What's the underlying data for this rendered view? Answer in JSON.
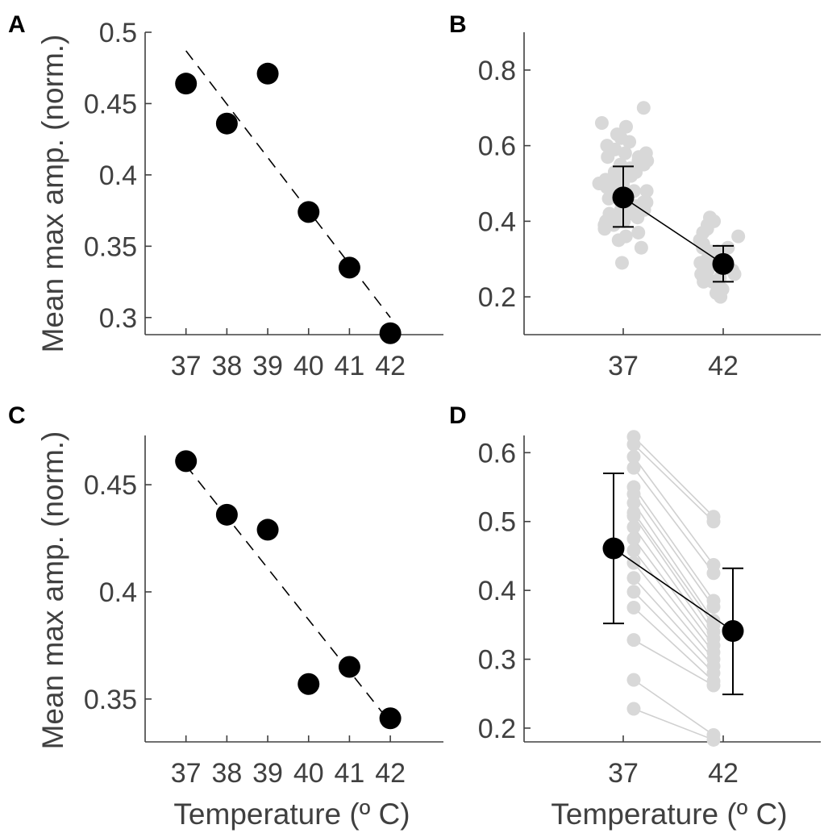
{
  "colors": {
    "point": "#000000",
    "scatter": "#d8d8d8",
    "pair_line": "#d0d0d0",
    "axis": "#404040",
    "text": "#404040"
  },
  "axes_text": {
    "ylabel_top": "Mean max amp. (norm.)",
    "ylabel_bottom": "Mean max amp. (norm.)",
    "xlabel_left": "Temperature (º C)",
    "xlabel_right": "Temperature (º C)"
  },
  "chart_data": [
    {
      "panel": "A",
      "type": "scatter",
      "xlabel": "",
      "ylabel": "Mean max amp. (norm.)",
      "x": [
        37,
        38,
        39,
        40,
        41,
        42
      ],
      "y": [
        0.464,
        0.436,
        0.471,
        0.374,
        0.335,
        0.289
      ],
      "fit_line": {
        "x": [
          37,
          42
        ],
        "y": [
          0.487,
          0.3
        ]
      },
      "xlim": [
        36,
        43.3
      ],
      "ylim": [
        0.288,
        0.5
      ],
      "xticks": [
        37,
        38,
        39,
        40,
        41,
        42
      ],
      "yticks": [
        0.3,
        0.35,
        0.4,
        0.45,
        0.5
      ],
      "ytick_labels": [
        "0.3",
        "0.35",
        "0.4",
        "0.45",
        "0.5"
      ]
    },
    {
      "panel": "B",
      "type": "scatter",
      "xlabel": "",
      "ylabel": "",
      "categories": [
        "37",
        "42"
      ],
      "means": [
        0.463,
        0.287
      ],
      "errors": [
        [
          0.385,
          0.545
        ],
        [
          0.24,
          0.335
        ]
      ],
      "raw_points": [
        [
          0.7,
          0.66,
          0.65,
          0.63,
          0.62,
          0.61,
          0.6,
          0.59,
          0.58,
          0.58,
          0.57,
          0.57,
          0.56,
          0.56,
          0.55,
          0.55,
          0.54,
          0.54,
          0.53,
          0.53,
          0.52,
          0.52,
          0.51,
          0.51,
          0.5,
          0.5,
          0.5,
          0.49,
          0.49,
          0.48,
          0.48,
          0.47,
          0.47,
          0.46,
          0.46,
          0.45,
          0.45,
          0.45,
          0.44,
          0.44,
          0.43,
          0.43,
          0.42,
          0.42,
          0.41,
          0.41,
          0.4,
          0.4,
          0.39,
          0.39,
          0.38,
          0.37,
          0.36,
          0.35,
          0.33,
          0.29
        ],
        [
          0.41,
          0.4,
          0.39,
          0.38,
          0.37,
          0.36,
          0.35,
          0.34,
          0.33,
          0.33,
          0.32,
          0.32,
          0.31,
          0.31,
          0.3,
          0.3,
          0.29,
          0.29,
          0.28,
          0.28,
          0.27,
          0.27,
          0.26,
          0.26,
          0.25,
          0.25,
          0.24,
          0.24,
          0.23,
          0.22,
          0.21,
          0.2
        ]
      ],
      "ylim": [
        0.1,
        0.9
      ],
      "yticks": [
        0.2,
        0.4,
        0.6,
        0.8
      ],
      "ytick_labels": [
        "0.2",
        "0.4",
        "0.6",
        "0.8"
      ]
    },
    {
      "panel": "C",
      "type": "scatter",
      "xlabel": "Temperature (º C)",
      "ylabel": "Mean max amp. (norm.)",
      "x": [
        37,
        38,
        39,
        40,
        41,
        42
      ],
      "y": [
        0.461,
        0.436,
        0.429,
        0.357,
        0.365,
        0.341
      ],
      "fit_line": {
        "x": [
          37,
          42
        ],
        "y": [
          0.459,
          0.339
        ]
      },
      "xlim": [
        36,
        43.3
      ],
      "ylim": [
        0.33,
        0.473
      ],
      "xticks": [
        37,
        38,
        39,
        40,
        41,
        42
      ],
      "yticks": [
        0.35,
        0.4,
        0.45
      ],
      "ytick_labels": [
        "0.35",
        "0.4",
        "0.45"
      ]
    },
    {
      "panel": "D",
      "type": "line",
      "xlabel": "Temperature (º C)",
      "ylabel": "",
      "categories": [
        "37",
        "42"
      ],
      "means": [
        0.461,
        0.341
      ],
      "errors": [
        [
          0.352,
          0.57
        ],
        [
          0.249,
          0.432
        ]
      ],
      "pairs": [
        [
          0.623,
          0.507
        ],
        [
          0.612,
          0.5
        ],
        [
          0.594,
          0.437
        ],
        [
          0.578,
          0.425
        ],
        [
          0.55,
          0.385
        ],
        [
          0.54,
          0.376
        ],
        [
          0.527,
          0.356
        ],
        [
          0.513,
          0.35
        ],
        [
          0.508,
          0.34
        ],
        [
          0.492,
          0.33
        ],
        [
          0.475,
          0.32
        ],
        [
          0.458,
          0.31
        ],
        [
          0.44,
          0.3
        ],
        [
          0.418,
          0.29
        ],
        [
          0.398,
          0.28
        ],
        [
          0.375,
          0.268
        ],
        [
          0.328,
          0.262
        ],
        [
          0.27,
          0.19
        ],
        [
          0.228,
          0.183
        ]
      ],
      "ylim": [
        0.18,
        0.625
      ],
      "yticks": [
        0.2,
        0.3,
        0.4,
        0.5,
        0.6
      ],
      "ytick_labels": [
        "0.2",
        "0.3",
        "0.4",
        "0.5",
        "0.6"
      ]
    }
  ]
}
